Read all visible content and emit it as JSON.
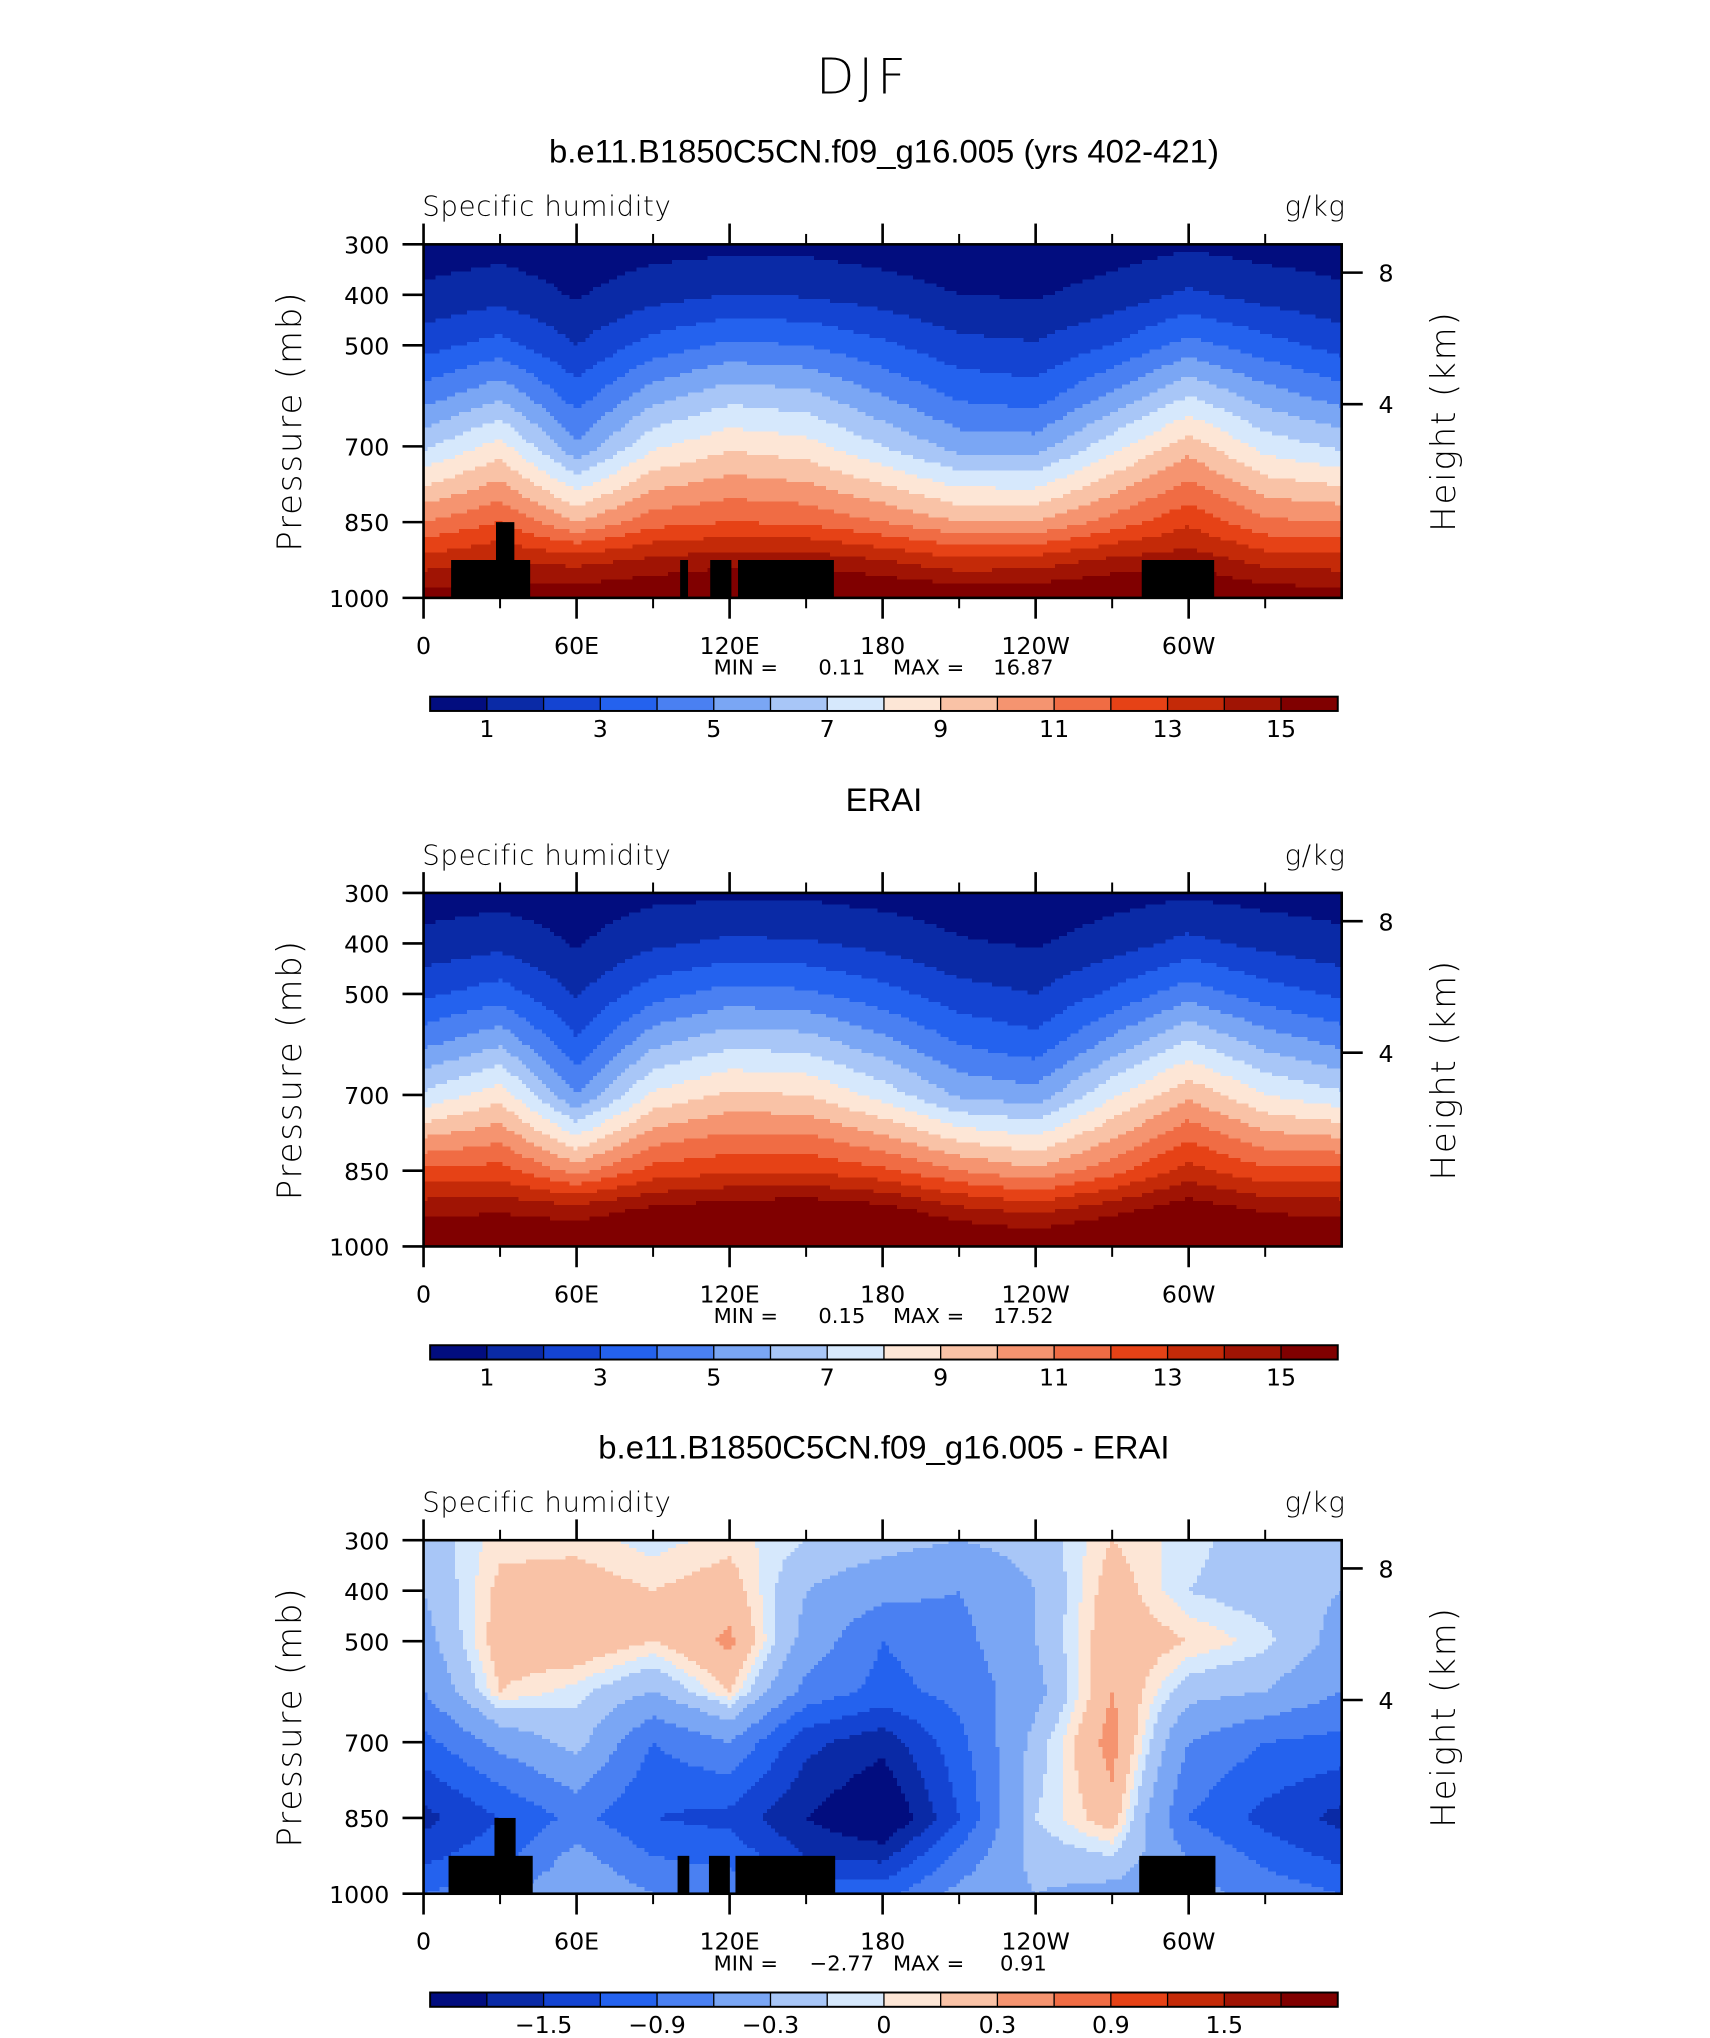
{
  "title": "DJF",
  "panels": [
    {
      "type": "contour",
      "title": "b.e11.B1850C5CN.f09_g16.005 (yrs 402-421)",
      "left_label": "Specific humidity",
      "right_label": "g/kg",
      "ylabel": "Pressure (mb)",
      "y2label": "Height (km)",
      "xlim": [
        0,
        360
      ],
      "ylim": [
        300,
        1000
      ],
      "xticks": [
        0,
        {
          "value": 60,
          "label": "60E"
        },
        {
          "value": 120,
          "label": "120E"
        },
        180,
        {
          "value": 240,
          "label": "120W"
        },
        {
          "value": 300,
          "label": "60W"
        }
      ],
      "yticks": [
        300,
        400,
        500,
        700,
        850,
        1000
      ],
      "y2ticks": [
        8,
        4
      ],
      "min_label": "MIN =",
      "min": 0.11,
      "max_label": "MAX =",
      "max": 16.87,
      "lon": [
        0,
        30,
        60,
        90,
        120,
        150,
        180,
        210,
        240,
        270,
        300,
        330,
        360
      ],
      "pressure": [
        300,
        400,
        500,
        600,
        700,
        850,
        925,
        1000
      ],
      "q": [
        [
          0.5,
          0.6,
          0.4,
          0.6,
          0.7,
          0.7,
          0.5,
          0.3,
          0.3,
          0.5,
          0.8,
          0.6,
          0.5
        ],
        [
          1.2,
          1.6,
          0.9,
          1.6,
          2.0,
          1.9,
          1.5,
          1.0,
          0.9,
          1.4,
          2.2,
          1.6,
          1.2
        ],
        [
          2.6,
          3.4,
          2.0,
          3.4,
          4.2,
          4.0,
          3.2,
          2.3,
          2.1,
          3.0,
          4.4,
          3.4,
          2.6
        ],
        [
          4.5,
          5.8,
          3.5,
          5.6,
          6.6,
          6.3,
          5.0,
          3.8,
          3.5,
          5.2,
          7.0,
          5.5,
          4.5
        ],
        [
          6.8,
          8.4,
          5.2,
          7.8,
          8.8,
          8.4,
          7.0,
          5.6,
          5.5,
          7.6,
          9.6,
          7.6,
          6.8
        ],
        [
          11.0,
          12.0,
          10.0,
          11.6,
          12.0,
          11.8,
          11.0,
          10.0,
          10.0,
          11.4,
          12.8,
          11.2,
          11.0
        ],
        [
          13.4,
          14.0,
          13.6,
          14.2,
          14.6,
          14.6,
          14.0,
          13.2,
          13.4,
          14.2,
          14.6,
          13.6,
          13.4
        ],
        [
          15.6,
          15.6,
          15.8,
          16.2,
          16.6,
          16.8,
          16.4,
          16.0,
          16.0,
          16.4,
          16.6,
          15.8,
          15.6
        ]
      ],
      "mask": [
        [
          10.8,
          41.8,
          925
        ],
        [
          28.4,
          35.6,
          850
        ],
        [
          100.6,
          103.7,
          925
        ],
        [
          112.4,
          120.7,
          925
        ],
        [
          123.3,
          160.9,
          925
        ],
        [
          281.6,
          310,
          925
        ]
      ],
      "colorbar": {
        "levels": [
          1,
          2,
          3,
          4,
          5,
          6,
          7,
          8,
          9,
          10,
          11,
          12,
          13,
          14,
          15
        ],
        "colors": [
          "#020d7f",
          "#0a2aa6",
          "#1444d2",
          "#2462ee",
          "#4a80f2",
          "#7aa6f4",
          "#a8c6f7",
          "#d6e8fc",
          "#fde6d6",
          "#f9c2a6",
          "#f59470",
          "#f06c44",
          "#e64216",
          "#c42a08",
          "#a01404",
          "#800000"
        ],
        "ticks": [
          1,
          3,
          5,
          7,
          9,
          11,
          13,
          15
        ]
      }
    },
    {
      "type": "contour",
      "title": "ERAI",
      "left_label": "Specific humidity",
      "right_label": "g/kg",
      "ylabel": "Pressure (mb)",
      "y2label": "Height (km)",
      "xlim": [
        0,
        360
      ],
      "ylim": [
        300,
        1000
      ],
      "xticks": [
        0,
        {
          "value": 60,
          "label": "60E"
        },
        {
          "value": 120,
          "label": "120E"
        },
        180,
        {
          "value": 240,
          "label": "120W"
        },
        {
          "value": 300,
          "label": "60W"
        }
      ],
      "yticks": [
        300,
        400,
        500,
        700,
        850,
        1000
      ],
      "y2ticks": [
        8,
        4
      ],
      "min_label": "MIN =",
      "min": 0.15,
      "max_label": "MAX =",
      "max": 17.52,
      "lon": [
        0,
        30,
        60,
        90,
        120,
        150,
        180,
        210,
        240,
        270,
        300,
        330,
        360
      ],
      "pressure": [
        300,
        400,
        500,
        600,
        700,
        850,
        925,
        1000
      ],
      "q": [
        [
          0.5,
          0.6,
          0.4,
          0.7,
          0.8,
          0.8,
          0.6,
          0.4,
          0.3,
          0.6,
          0.8,
          0.6,
          0.5
        ],
        [
          1.3,
          1.7,
          0.9,
          1.8,
          2.2,
          2.1,
          1.7,
          1.1,
          0.9,
          1.5,
          2.3,
          1.7,
          1.3
        ],
        [
          2.8,
          3.5,
          1.9,
          3.6,
          4.4,
          4.2,
          3.4,
          2.4,
          2.0,
          3.2,
          4.6,
          3.5,
          2.8
        ],
        [
          4.8,
          5.9,
          3.2,
          5.8,
          6.8,
          6.6,
          5.4,
          4.0,
          3.4,
          5.4,
          7.2,
          5.7,
          4.8
        ],
        [
          7.2,
          8.6,
          5.0,
          8.2,
          9.2,
          9.0,
          7.6,
          5.8,
          5.4,
          7.8,
          9.8,
          8.0,
          7.2
        ],
        [
          12.2,
          12.4,
          10.6,
          12.4,
          12.8,
          12.9,
          12.2,
          11.0,
          10.2,
          11.6,
          13.4,
          12.2,
          12.2
        ],
        [
          14.6,
          14.8,
          14.4,
          15.2,
          15.6,
          15.8,
          15.4,
          14.2,
          13.6,
          14.6,
          15.6,
          14.8,
          14.6
        ],
        [
          16.2,
          16.4,
          16.2,
          16.8,
          17.2,
          17.4,
          17.2,
          16.6,
          16.2,
          16.8,
          17.4,
          16.4,
          16.2
        ]
      ],
      "colorbar": {
        "levels": [
          1,
          2,
          3,
          4,
          5,
          6,
          7,
          8,
          9,
          10,
          11,
          12,
          13,
          14,
          15
        ],
        "colors": [
          "#020d7f",
          "#0a2aa6",
          "#1444d2",
          "#2462ee",
          "#4a80f2",
          "#7aa6f4",
          "#a8c6f7",
          "#d6e8fc",
          "#fde6d6",
          "#f9c2a6",
          "#f59470",
          "#f06c44",
          "#e64216",
          "#c42a08",
          "#a01404",
          "#800000"
        ],
        "ticks": [
          1,
          3,
          5,
          7,
          9,
          11,
          13,
          15
        ]
      }
    },
    {
      "type": "contour",
      "title": "b.e11.B1850C5CN.f09_g16.005 - ERAI",
      "left_label": "Specific humidity",
      "right_label": "g/kg",
      "ylabel": "Pressure (mb)",
      "y2label": "Height (km)",
      "xlim": [
        0,
        360
      ],
      "ylim": [
        300,
        1000
      ],
      "xticks": [
        0,
        {
          "value": 60,
          "label": "60E"
        },
        {
          "value": 120,
          "label": "120E"
        },
        180,
        {
          "value": 240,
          "label": "120W"
        },
        {
          "value": 300,
          "label": "60W"
        }
      ],
      "yticks": [
        300,
        400,
        500,
        700,
        850,
        1000
      ],
      "y2ticks": [
        8,
        4
      ],
      "min_label": "MIN =",
      "min": {
        "value": -2.77,
        "label": "−2.77"
      },
      "max_label": "MAX =",
      "max": 0.91,
      "lon": [
        0,
        30,
        60,
        90,
        120,
        150,
        180,
        210,
        240,
        270,
        300,
        330,
        360
      ],
      "pressure": [
        300,
        400,
        500,
        600,
        700,
        850,
        925,
        1000
      ],
      "q": [
        [
          -0.2,
          0.05,
          0.05,
          -0.05,
          0.05,
          -0.1,
          -0.2,
          -0.3,
          -0.2,
          0.1,
          -0.05,
          -0.2,
          -0.2
        ],
        [
          -0.3,
          0.15,
          0.2,
          0.1,
          0.2,
          -0.3,
          -0.5,
          -0.6,
          -0.3,
          0.2,
          -0.1,
          -0.2,
          -0.3
        ],
        [
          -0.4,
          0.2,
          0.25,
          0.1,
          0.35,
          -0.4,
          -0.9,
          -0.7,
          -0.3,
          0.25,
          0.1,
          -0.05,
          -0.4
        ],
        [
          -0.6,
          0.1,
          -0.05,
          -0.3,
          0.1,
          -0.7,
          -1.0,
          -0.8,
          -0.4,
          0.3,
          -0.2,
          -0.3,
          -0.6
        ],
        [
          -1.0,
          -0.5,
          -0.2,
          -0.9,
          -0.6,
          -1.4,
          -1.7,
          -1.0,
          -0.2,
          0.4,
          -0.6,
          -0.9,
          -1.0
        ],
        [
          -1.6,
          -1.2,
          -0.8,
          -1.2,
          -1.3,
          -1.8,
          -2.2,
          -1.2,
          -0.1,
          0.2,
          -0.9,
          -1.3,
          -1.6
        ],
        [
          -1.3,
          -1.0,
          -0.5,
          -0.9,
          -1.0,
          -1.5,
          -1.6,
          -0.8,
          -0.2,
          -0.1,
          -0.6,
          -1.0,
          -1.3
        ],
        [
          -0.9,
          -0.7,
          -0.3,
          -0.6,
          -0.7,
          -1.0,
          -1.0,
          -0.5,
          -0.3,
          -0.4,
          -0.5,
          -0.7,
          -0.9
        ]
      ],
      "mask": [
        [
          9.8,
          42.8,
          925
        ],
        [
          27.8,
          36.1,
          850
        ],
        [
          99.6,
          104.2,
          925
        ],
        [
          111.9,
          120.1,
          925
        ],
        [
          122.3,
          161.4,
          925
        ],
        [
          280.6,
          310.5,
          925
        ]
      ],
      "colorbar": {
        "levels": [
          -1.8,
          -1.5,
          -1.2,
          -0.9,
          -0.6,
          -0.3,
          -0.1,
          0,
          0.1,
          0.3,
          0.6,
          0.9,
          1.2,
          1.5,
          1.8
        ],
        "colors": [
          "#020d7f",
          "#0a2aa6",
          "#1444d2",
          "#2462ee",
          "#4a80f2",
          "#7aa6f4",
          "#a8c6f7",
          "#d6e8fc",
          "#fde6d6",
          "#f9c2a6",
          "#f59470",
          "#f06c44",
          "#e64216",
          "#c42a08",
          "#a01404",
          "#800000"
        ],
        "ticks": [
          {
            "value": -1.5,
            "label": "−1.5"
          },
          {
            "value": -0.9,
            "label": "−0.9"
          },
          {
            "value": -0.3,
            "label": "−0.3"
          },
          0,
          0.3,
          0.9,
          1.5
        ]
      }
    }
  ]
}
